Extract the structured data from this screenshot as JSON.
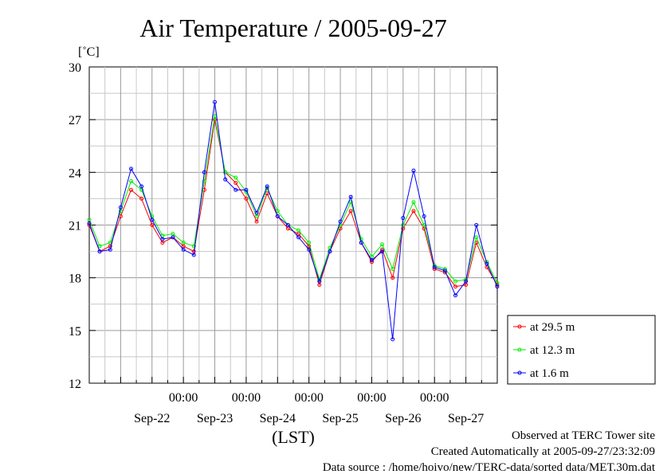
{
  "chart_data": {
    "type": "line",
    "title": "Air Temperature / 2005-09-27",
    "ylabel": "[˚C]",
    "xlabel": "(LST)",
    "ylim": [
      12,
      30
    ],
    "yticks": [
      12,
      15,
      18,
      21,
      24,
      27,
      30
    ],
    "xlim": [
      "2005-09-21T12:00",
      "2005-09-27T24:00"
    ],
    "time_tick_labels": [
      "00:00",
      "00:00",
      "00:00",
      "00:00",
      "00:00"
    ],
    "date_labels": [
      "Sep-22",
      "Sep-23",
      "Sep-24",
      "Sep-25",
      "Sep-26",
      "Sep-27"
    ],
    "grid": true,
    "legend_position": "right",
    "series": [
      {
        "name": "at 29.5 m",
        "color": "#ff0000",
        "x": [
          "2005-09-21T12:00",
          "2005-09-21T16:00",
          "2005-09-21T20:00",
          "2005-09-22T00:00",
          "2005-09-22T04:00",
          "2005-09-22T08:00",
          "2005-09-22T12:00",
          "2005-09-22T16:00",
          "2005-09-22T20:00",
          "2005-09-23T00:00",
          "2005-09-23T04:00",
          "2005-09-23T08:00",
          "2005-09-23T12:00",
          "2005-09-23T16:00",
          "2005-09-23T20:00",
          "2005-09-24T00:00",
          "2005-09-24T04:00",
          "2005-09-24T08:00",
          "2005-09-24T12:00",
          "2005-09-24T16:00",
          "2005-09-24T20:00",
          "2005-09-25T00:00",
          "2005-09-25T04:00",
          "2005-09-25T08:00",
          "2005-09-25T12:00",
          "2005-09-25T16:00",
          "2005-09-25T20:00",
          "2005-09-26T00:00",
          "2005-09-26T04:00",
          "2005-09-26T08:00",
          "2005-09-26T12:00",
          "2005-09-26T16:00",
          "2005-09-26T20:00",
          "2005-09-27T00:00",
          "2005-09-27T04:00",
          "2005-09-27T08:00",
          "2005-09-27T12:00",
          "2005-09-27T16:00",
          "2005-09-27T20:00",
          "2005-09-27T24:00"
        ],
        "y": [
          21.0,
          19.5,
          19.8,
          21.5,
          23.0,
          22.5,
          21.0,
          20.0,
          20.3,
          19.8,
          19.5,
          23.0,
          27.0,
          24.0,
          23.4,
          22.5,
          21.2,
          22.8,
          21.5,
          20.8,
          20.5,
          19.8,
          17.6,
          19.5,
          20.8,
          21.8,
          20.0,
          18.9,
          19.6,
          18.0,
          20.8,
          21.8,
          20.8,
          18.5,
          18.3,
          17.5,
          17.6,
          20.0,
          18.6,
          17.6
        ]
      },
      {
        "name": "at 12.3 m",
        "color": "#00ee00",
        "x": [
          "2005-09-21T12:00",
          "2005-09-21T16:00",
          "2005-09-21T20:00",
          "2005-09-22T00:00",
          "2005-09-22T04:00",
          "2005-09-22T08:00",
          "2005-09-22T12:00",
          "2005-09-22T16:00",
          "2005-09-22T20:00",
          "2005-09-23T00:00",
          "2005-09-23T04:00",
          "2005-09-23T08:00",
          "2005-09-23T12:00",
          "2005-09-23T16:00",
          "2005-09-23T20:00",
          "2005-09-24T00:00",
          "2005-09-24T04:00",
          "2005-09-24T08:00",
          "2005-09-24T12:00",
          "2005-09-24T16:00",
          "2005-09-24T20:00",
          "2005-09-25T00:00",
          "2005-09-25T04:00",
          "2005-09-25T08:00",
          "2005-09-25T12:00",
          "2005-09-25T16:00",
          "2005-09-25T20:00",
          "2005-09-26T00:00",
          "2005-09-26T04:00",
          "2005-09-26T08:00",
          "2005-09-26T12:00",
          "2005-09-26T16:00",
          "2005-09-26T20:00",
          "2005-09-27T00:00",
          "2005-09-27T04:00",
          "2005-09-27T08:00",
          "2005-09-27T12:00",
          "2005-09-27T16:00",
          "2005-09-27T20:00",
          "2005-09-27T24:00"
        ],
        "y": [
          21.3,
          19.8,
          20.0,
          21.8,
          23.5,
          23.0,
          21.5,
          20.4,
          20.5,
          20.0,
          19.8,
          23.5,
          27.2,
          24.0,
          23.7,
          22.9,
          21.5,
          23.1,
          21.8,
          21.0,
          20.7,
          20.0,
          17.9,
          19.7,
          21.0,
          22.3,
          20.2,
          19.2,
          19.9,
          18.5,
          21.0,
          22.3,
          21.0,
          18.7,
          18.5,
          17.8,
          17.9,
          20.3,
          18.9,
          17.7
        ]
      },
      {
        "name": "at 1.6 m",
        "color": "#0000ff",
        "x": [
          "2005-09-21T12:00",
          "2005-09-21T16:00",
          "2005-09-21T20:00",
          "2005-09-22T00:00",
          "2005-09-22T04:00",
          "2005-09-22T08:00",
          "2005-09-22T12:00",
          "2005-09-22T16:00",
          "2005-09-22T20:00",
          "2005-09-23T00:00",
          "2005-09-23T04:00",
          "2005-09-23T08:00",
          "2005-09-23T12:00",
          "2005-09-23T16:00",
          "2005-09-23T20:00",
          "2005-09-24T00:00",
          "2005-09-24T04:00",
          "2005-09-24T08:00",
          "2005-09-24T12:00",
          "2005-09-24T16:00",
          "2005-09-24T20:00",
          "2005-09-25T00:00",
          "2005-09-25T04:00",
          "2005-09-25T08:00",
          "2005-09-25T12:00",
          "2005-09-25T16:00",
          "2005-09-25T20:00",
          "2005-09-26T00:00",
          "2005-09-26T04:00",
          "2005-09-26T08:00",
          "2005-09-26T12:00",
          "2005-09-26T16:00",
          "2005-09-26T20:00",
          "2005-09-27T00:00",
          "2005-09-27T04:00",
          "2005-09-27T08:00",
          "2005-09-27T12:00",
          "2005-09-27T16:00",
          "2005-09-27T20:00",
          "2005-09-27T24:00"
        ],
        "y": [
          21.1,
          19.5,
          19.6,
          22.0,
          24.2,
          23.2,
          21.3,
          20.2,
          20.3,
          19.6,
          19.3,
          24.0,
          28.0,
          23.6,
          23.0,
          23.0,
          21.7,
          23.2,
          21.5,
          21.0,
          20.3,
          19.6,
          17.8,
          19.5,
          21.2,
          22.6,
          20.0,
          19.0,
          19.5,
          14.5,
          21.4,
          24.1,
          21.5,
          18.6,
          18.4,
          17.0,
          17.8,
          21.0,
          18.8,
          17.5
        ]
      }
    ]
  },
  "footer": {
    "observed": "Observed at TERC Tower site",
    "created": "Created Automatically at 2005-09-27/23:32:09",
    "source": "Data source : /home/hoivo/new/TERC-data/sorted  data/MET.30m.dat"
  }
}
